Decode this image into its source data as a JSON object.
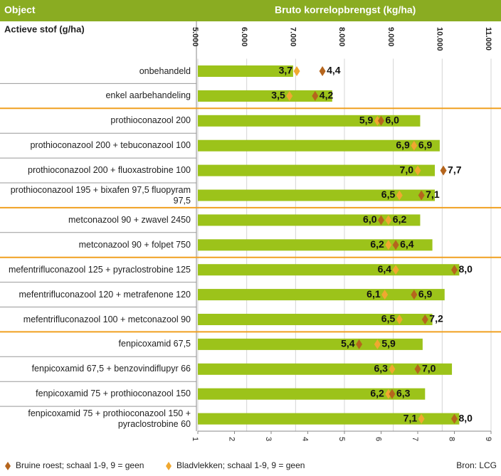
{
  "chart_data": {
    "type": "bar",
    "orientation": "horizontal",
    "header_left": "Object",
    "title": "Bruto korrelopbrengst (kg/ha)",
    "subheader_left": "Actieve stof (g/ha)",
    "categories": [
      "onbehandeld",
      "enkel aarbehandeling",
      "prothioconazool 200",
      "prothioconazool 200 + tebuconazool 100",
      "prothioconazool 200 + fluoxastrobine 100",
      "prothioconazool 195 + bixafen 97,5 fluopyram 97,5",
      "metconazool 90 + zwavel 2450",
      "metconazool 90 + folpet 750",
      "mefentrifluconazool 125 + pyraclostrobine 125",
      "mefentrifluconazool 120 + metrafenone 120",
      "mefentrifluconazool 100 + metconazool 90",
      "fenpicoxamid 67,5",
      "fenpicoxamid 67,5 + benzovindiflupyr 66",
      "fenpicoxamid 75 + prothioconazool 150",
      "fenpicoxamid 75 + prothioconazool 150 +\npyraclostrobine 60"
    ],
    "values": [
      6950,
      7750,
      9550,
      9950,
      9850,
      9850,
      9550,
      9800,
      10350,
      10050,
      9800,
      9600,
      10200,
      9650,
      10350
    ],
    "color": "#9cc31a",
    "xlim": [
      5000,
      11000
    ],
    "xticks": [
      {
        "value": 5000,
        "label": "5.000"
      },
      {
        "value": 6000,
        "label": "6.000"
      },
      {
        "value": 7000,
        "label": "7.000"
      },
      {
        "value": 8000,
        "label": "8.000"
      },
      {
        "value": 9000,
        "label": "9.000"
      },
      {
        "value": 10000,
        "label": "10.000"
      },
      {
        "value": 11000,
        "label": "11.000"
      }
    ],
    "x2lim": [
      1,
      9
    ],
    "x2ticks": [
      1,
      2,
      3,
      4,
      5,
      6,
      7,
      8,
      9
    ],
    "grid": true,
    "series": [
      {
        "name": "Bruine roest; schaal 1-9, 9 = geen",
        "color": "#b5651d",
        "axis": "x2",
        "values": [
          4.4,
          4.2,
          6.0,
          6.9,
          7.7,
          7.1,
          6.0,
          6.4,
          8.0,
          6.9,
          7.2,
          5.4,
          7.0,
          6.3,
          8.0
        ],
        "value_labels": [
          "4,4",
          "4,2",
          "6,0",
          "6,9",
          "7,7",
          "7,1",
          "6,0",
          "6,4",
          "8,0",
          "6,9",
          "7,2",
          "5,4",
          "7,0",
          "6,3",
          "8,0"
        ]
      },
      {
        "name": "Bladvlekken; schaal 1-9, 9 = geen",
        "color": "#f0a830",
        "axis": "x2",
        "values": [
          3.7,
          3.5,
          5.9,
          6.9,
          7.0,
          6.5,
          6.2,
          6.2,
          6.4,
          6.1,
          6.5,
          5.9,
          6.3,
          6.2,
          7.1
        ],
        "value_labels": [
          "3,7",
          "3,5",
          "5,9",
          "6,9",
          "7,0",
          "6,5",
          "6,2",
          "6,2",
          "6,4",
          "6,1",
          "6,5",
          "5,9",
          "6,3",
          "6,2",
          "7,1"
        ]
      }
    ],
    "source": "Bron: LCG"
  }
}
